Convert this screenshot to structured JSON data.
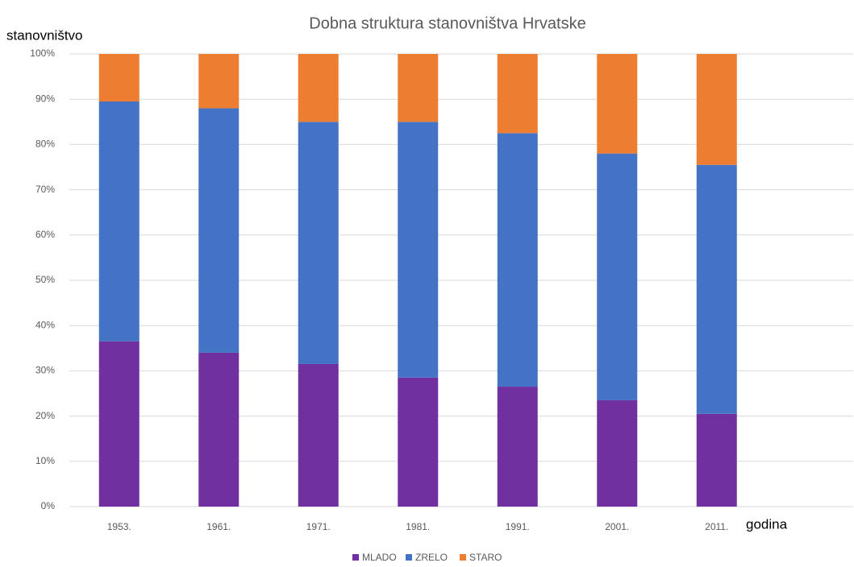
{
  "chart_data": {
    "type": "stacked_bar",
    "title": "Dobna struktura stanovništva Hrvatske",
    "y_label": "stanovništvo",
    "x_label": "godina",
    "categories": [
      "1953.",
      "1961.",
      "1971.",
      "1981.",
      "1991.",
      "2001.",
      "2011."
    ],
    "series": [
      {
        "name": "MLADO",
        "color": "#7030a0",
        "values": [
          36.5,
          34,
          31.5,
          28.5,
          26.5,
          23.5,
          20.5
        ]
      },
      {
        "name": "ZRELO",
        "color": "#4472c4",
        "values": [
          53,
          54,
          53.5,
          56.5,
          56,
          54.5,
          55
        ]
      },
      {
        "name": "STARO",
        "color": "#ed7d31",
        "values": [
          10.5,
          12,
          15,
          15,
          17.5,
          22,
          24.5
        ]
      }
    ],
    "ylim": [
      0,
      100
    ],
    "yticks": [
      {
        "value": 0,
        "label": "0%"
      },
      {
        "value": 10,
        "label": "10%"
      },
      {
        "value": 20,
        "label": "20%"
      },
      {
        "value": 30,
        "label": "30%"
      },
      {
        "value": 40,
        "label": "40%"
      },
      {
        "value": 50,
        "label": "50%"
      },
      {
        "value": 60,
        "label": "60%"
      },
      {
        "value": 70,
        "label": "70%"
      },
      {
        "value": 80,
        "label": "80%"
      },
      {
        "value": 90,
        "label": "90%"
      },
      {
        "value": 100,
        "label": "100%"
      }
    ],
    "grid": true,
    "legend": "bottom"
  }
}
